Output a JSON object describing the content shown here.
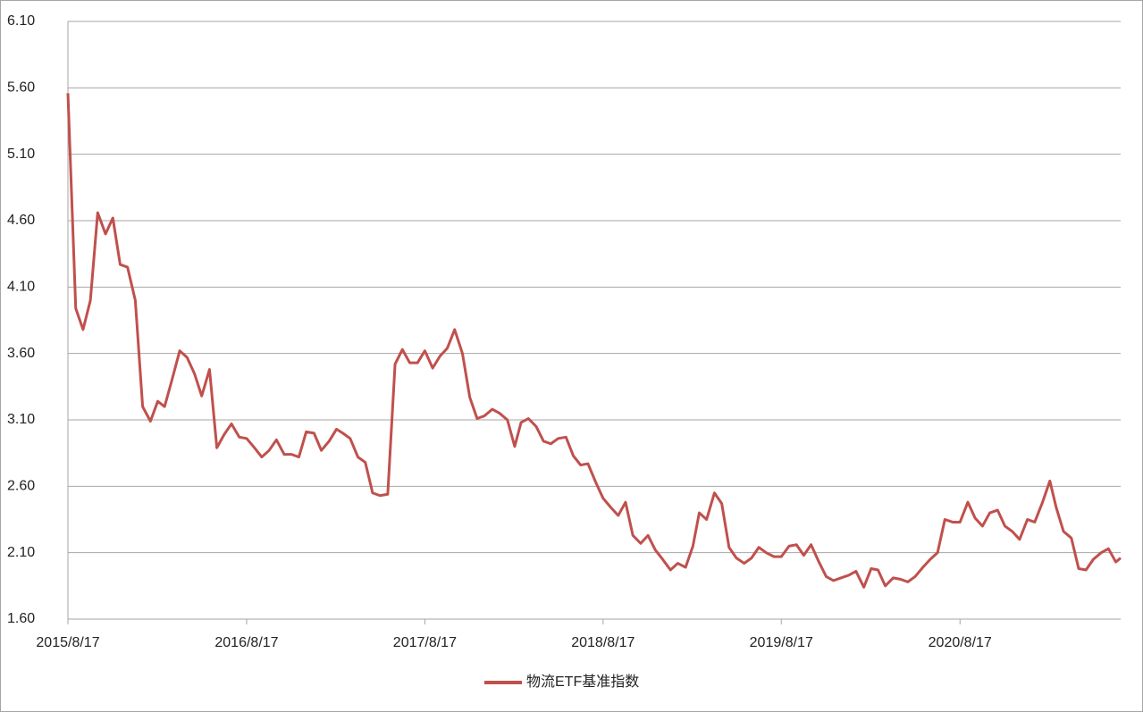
{
  "chart_data": {
    "type": "line",
    "x": [
      "2015/8/17",
      "2015/9/2",
      "2015/9/17",
      "2015/10/2",
      "2015/10/17",
      "2015/11/2",
      "2015/11/17",
      "2015/12/2",
      "2015/12/17",
      "2016/1/2",
      "2016/1/17",
      "2016/2/2",
      "2016/2/17",
      "2016/3/2",
      "2016/3/17",
      "2016/4/2",
      "2016/4/17",
      "2016/5/2",
      "2016/5/17",
      "2016/6/2",
      "2016/6/17",
      "2016/7/2",
      "2016/7/17",
      "2016/8/2",
      "2016/8/17",
      "2016/9/2",
      "2016/9/17",
      "2016/10/2",
      "2016/10/17",
      "2016/11/2",
      "2016/11/17",
      "2016/12/2",
      "2016/12/17",
      "2017/1/2",
      "2017/1/17",
      "2017/2/2",
      "2017/2/17",
      "2017/3/2",
      "2017/3/17",
      "2017/4/2",
      "2017/4/17",
      "2017/5/2",
      "2017/5/17",
      "2017/6/2",
      "2017/6/17",
      "2017/7/2",
      "2017/7/17",
      "2017/8/2",
      "2017/8/17",
      "2017/9/2",
      "2017/9/17",
      "2017/10/2",
      "2017/10/17",
      "2017/11/2",
      "2017/11/17",
      "2017/12/2",
      "2017/12/17",
      "2018/1/2",
      "2018/1/17",
      "2018/2/2",
      "2018/2/17",
      "2018/3/2",
      "2018/3/17",
      "2018/4/2",
      "2018/4/17",
      "2018/5/2",
      "2018/5/17",
      "2018/6/2",
      "2018/6/17",
      "2018/7/2",
      "2018/7/17",
      "2018/8/2",
      "2018/8/17",
      "2018/9/2",
      "2018/9/17",
      "2018/10/2",
      "2018/10/17",
      "2018/11/2",
      "2018/11/17",
      "2018/12/2",
      "2018/12/17",
      "2019/1/2",
      "2019/1/17",
      "2019/2/2",
      "2019/2/17",
      "2019/3/2",
      "2019/3/17",
      "2019/4/2",
      "2019/4/17",
      "2019/5/2",
      "2019/5/17",
      "2019/6/2",
      "2019/6/17",
      "2019/7/2",
      "2019/7/17",
      "2019/8/2",
      "2019/8/17",
      "2019/9/2",
      "2019/9/17",
      "2019/10/2",
      "2019/10/17",
      "2019/11/2",
      "2019/11/17",
      "2019/12/2",
      "2019/12/17",
      "2020/1/2",
      "2020/1/17",
      "2020/2/2",
      "2020/2/17",
      "2020/3/2",
      "2020/3/17",
      "2020/4/2",
      "2020/4/17",
      "2020/5/2",
      "2020/5/17",
      "2020/6/2",
      "2020/6/17",
      "2020/7/2",
      "2020/7/17",
      "2020/8/2",
      "2020/8/17",
      "2020/9/2",
      "2020/9/17",
      "2020/10/2",
      "2020/10/17",
      "2020/11/2",
      "2020/11/17",
      "2020/12/2",
      "2020/12/17",
      "2021/1/2",
      "2021/1/17",
      "2021/2/2",
      "2021/2/17",
      "2021/3/2",
      "2021/3/17",
      "2021/4/2",
      "2021/4/17",
      "2021/5/2",
      "2021/5/17",
      "2021/6/2",
      "2021/6/17",
      "2021/7/2",
      "2021/7/12"
    ],
    "series": [
      {
        "name": "物流ETF基准指数",
        "color": "#c0504d",
        "values": [
          5.56,
          3.94,
          3.78,
          4.0,
          4.66,
          4.5,
          4.62,
          4.27,
          4.25,
          4.0,
          3.2,
          3.09,
          3.24,
          3.2,
          3.4,
          3.62,
          3.57,
          3.45,
          3.28,
          3.48,
          2.89,
          2.99,
          3.07,
          2.97,
          2.96,
          2.89,
          2.82,
          2.87,
          2.95,
          2.84,
          2.84,
          2.82,
          3.01,
          3.0,
          2.87,
          2.94,
          3.03,
          3.0,
          2.96,
          2.82,
          2.78,
          2.55,
          2.53,
          2.54,
          3.52,
          3.63,
          3.53,
          3.53,
          3.62,
          3.49,
          3.58,
          3.64,
          3.78,
          3.6,
          3.27,
          3.11,
          3.13,
          3.18,
          3.15,
          3.1,
          2.9,
          3.08,
          3.11,
          3.05,
          2.94,
          2.92,
          2.96,
          2.97,
          2.83,
          2.76,
          2.77,
          2.63,
          2.51,
          2.44,
          2.38,
          2.48,
          2.23,
          2.17,
          2.23,
          2.12,
          2.05,
          1.97,
          2.02,
          1.99,
          2.15,
          2.4,
          2.35,
          2.55,
          2.47,
          2.14,
          2.06,
          2.02,
          2.06,
          2.14,
          2.1,
          2.07,
          2.07,
          2.15,
          2.16,
          2.08,
          2.16,
          2.03,
          1.92,
          1.89,
          1.91,
          1.93,
          1.96,
          1.84,
          1.98,
          1.97,
          1.85,
          1.91,
          1.9,
          1.88,
          1.92,
          1.99,
          2.05,
          2.1,
          2.35,
          2.33,
          2.33,
          2.48,
          2.36,
          2.3,
          2.4,
          2.42,
          2.3,
          2.26,
          2.2,
          2.35,
          2.33,
          2.48,
          2.64,
          2.44,
          2.26,
          2.21,
          1.98,
          1.97,
          2.05,
          2.1,
          2.13,
          2.03,
          2.06
        ]
      }
    ],
    "xlim": [
      "2015/8/17",
      "2021/7/12"
    ],
    "xticks": [
      "2015/8/17",
      "2016/8/17",
      "2017/8/17",
      "2018/8/17",
      "2019/8/17",
      "2020/8/17"
    ],
    "ylim": [
      1.6,
      6.1
    ],
    "yticks": [
      {
        "value": 1.6,
        "label": "1.60"
      },
      {
        "value": 2.1,
        "label": "2.10"
      },
      {
        "value": 2.6,
        "label": "2.60"
      },
      {
        "value": 3.1,
        "label": "3.10"
      },
      {
        "value": 3.6,
        "label": "3.60"
      },
      {
        "value": 4.1,
        "label": "4.10"
      },
      {
        "value": 4.6,
        "label": "4.60"
      },
      {
        "value": 5.1,
        "label": "5.10"
      },
      {
        "value": 5.6,
        "label": "5.60"
      },
      {
        "value": 6.1,
        "label": "6.10"
      }
    ],
    "grid": true,
    "legend": "bottom"
  }
}
